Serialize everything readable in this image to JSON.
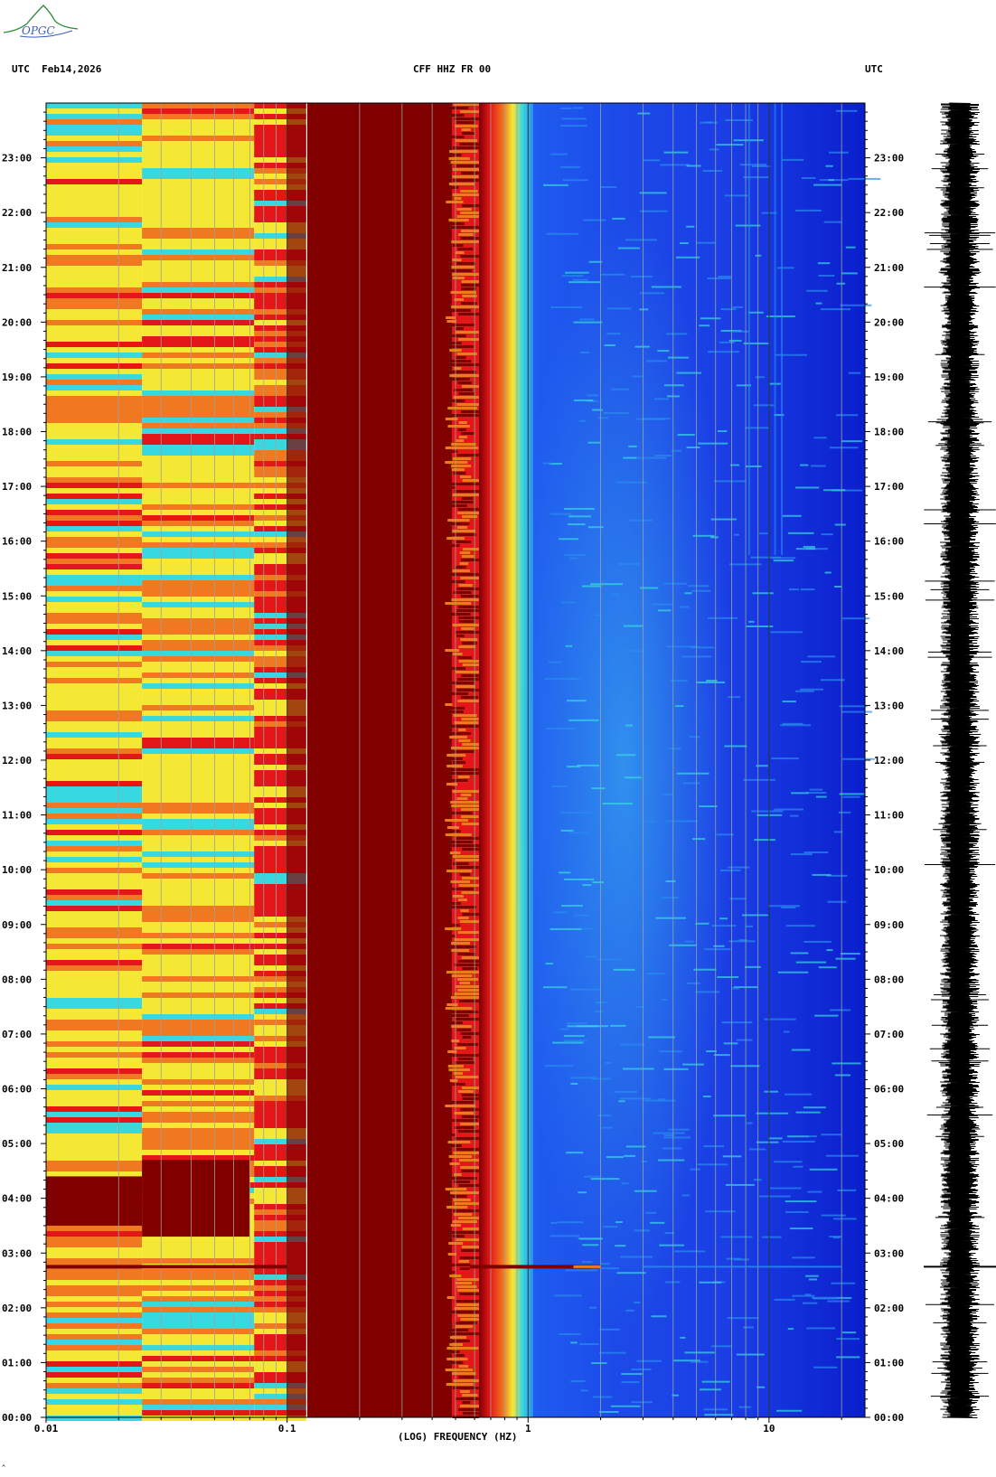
{
  "header": {
    "left": "UTC  Feb14,2026",
    "center": "CFF HHZ FR 00",
    "right": "UTC"
  },
  "logo_text": "OPGC",
  "footer_mark": "^",
  "colors": {
    "background": "#ffffff",
    "saturated": "#800000",
    "red": "#e3161a",
    "orange": "#f07820",
    "yellow": "#f5e834",
    "cyan": "#38d8e0",
    "lightblue": "#2a8cf0",
    "blue": "#1c3fe6",
    "darkblue": "#0a1fcc",
    "gridline": "#a0a0a0",
    "seismogram": "#000000"
  },
  "chart_data": {
    "type": "heatmap",
    "description_kind": "spectrogram",
    "title": "CFF HHZ FR 00",
    "xlabel": "(LOG) FREQUENCY (HZ)",
    "x_scale": "log",
    "xlim": [
      0.01,
      25
    ],
    "x_tick_labels": [
      "0.01",
      "0.1",
      "1",
      "10"
    ],
    "x_tick_values": [
      0.01,
      0.1,
      1,
      10
    ],
    "ylabel_left": "UTC",
    "ylabel_right": "UTC",
    "y_tick_labels": [
      "00:00",
      "01:00",
      "02:00",
      "03:00",
      "04:00",
      "05:00",
      "06:00",
      "07:00",
      "08:00",
      "09:00",
      "10:00",
      "11:00",
      "12:00",
      "13:00",
      "14:00",
      "15:00",
      "16:00",
      "17:00",
      "18:00",
      "19:00",
      "20:00",
      "21:00",
      "22:00",
      "23:00"
    ],
    "ylim_hours": [
      0,
      24
    ],
    "date": "Feb14,2026",
    "events": [
      {
        "time_hours": 2.75,
        "max_frequency_hz": 2.0,
        "note": "broadband event line"
      }
    ],
    "frequency_bands": [
      {
        "from_hz": 0.01,
        "to_hz": 0.1,
        "dominant": "yellow-orange-red banding"
      },
      {
        "from_hz": 0.12,
        "to_hz": 0.6,
        "dominant": "saturated dark red"
      },
      {
        "from_hz": 0.6,
        "to_hz": 1.0,
        "dominant": "red-orange-yellow-cyan transition"
      },
      {
        "from_hz": 1.0,
        "to_hz": 25,
        "dominant": "blue with light-blue noise"
      }
    ]
  }
}
